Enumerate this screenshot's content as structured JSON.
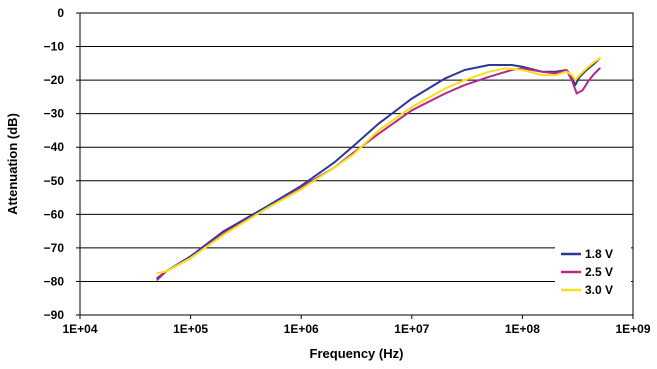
{
  "chart_data": {
    "type": "line",
    "title": "",
    "xlabel": "Frequency (Hz)",
    "ylabel": "Attenuation (dB)",
    "x_scale": "log",
    "xlim": [
      10000,
      1000000000
    ],
    "ylim": [
      -90,
      0
    ],
    "x_ticks": [
      10000,
      100000,
      1000000,
      10000000,
      100000000,
      1000000000
    ],
    "x_tick_labels": [
      "1E+04",
      "1E+05",
      "1E+06",
      "1E+07",
      "1E+08",
      "1E+09"
    ],
    "y_ticks": [
      0,
      -10,
      -20,
      -30,
      -40,
      -50,
      -60,
      -70,
      -80,
      -90
    ],
    "y_tick_labels": [
      "0",
      "−10",
      "−20",
      "−30",
      "−40",
      "−50",
      "−60",
      "−70",
      "−80",
      "−90"
    ],
    "grid": "horizontal",
    "legend_position": "bottom-right",
    "series": [
      {
        "name": "1.8 V",
        "color": "#2b3990",
        "points": [
          [
            50000,
            -79
          ],
          [
            60000,
            -77
          ],
          [
            100000,
            -72.5
          ],
          [
            200000,
            -65
          ],
          [
            500000,
            -57.5
          ],
          [
            1000000,
            -51.5
          ],
          [
            2000000,
            -44.5
          ],
          [
            3000000,
            -39.5
          ],
          [
            5000000,
            -33
          ],
          [
            10000000,
            -25.5
          ],
          [
            20000000,
            -19.5
          ],
          [
            30000000,
            -17
          ],
          [
            50000000,
            -15.5
          ],
          [
            80000000,
            -15.5
          ],
          [
            100000000,
            -16
          ],
          [
            150000000,
            -17.5
          ],
          [
            200000000,
            -17.5
          ],
          [
            250000000,
            -17
          ],
          [
            280000000,
            -19
          ],
          [
            300000000,
            -21.5
          ],
          [
            330000000,
            -19
          ],
          [
            380000000,
            -17
          ],
          [
            450000000,
            -15
          ],
          [
            500000000,
            -13.5
          ]
        ]
      },
      {
        "name": "2.5 V",
        "color": "#b5288e",
        "points": [
          [
            50000,
            -79.5
          ],
          [
            60000,
            -77
          ],
          [
            100000,
            -73
          ],
          [
            200000,
            -65.5
          ],
          [
            500000,
            -58
          ],
          [
            1000000,
            -52
          ],
          [
            2000000,
            -46
          ],
          [
            3000000,
            -41.5
          ],
          [
            5000000,
            -36
          ],
          [
            10000000,
            -29
          ],
          [
            20000000,
            -24
          ],
          [
            30000000,
            -21.5
          ],
          [
            50000000,
            -19
          ],
          [
            80000000,
            -17
          ],
          [
            100000000,
            -16.5
          ],
          [
            150000000,
            -17.5
          ],
          [
            200000000,
            -18
          ],
          [
            250000000,
            -17
          ],
          [
            280000000,
            -20
          ],
          [
            310000000,
            -24
          ],
          [
            350000000,
            -23
          ],
          [
            400000000,
            -20
          ],
          [
            450000000,
            -18
          ],
          [
            500000000,
            -16.5
          ]
        ]
      },
      {
        "name": "3.0 V",
        "color": "#f7e017",
        "points": [
          [
            50000,
            -77.5
          ],
          [
            60000,
            -77
          ],
          [
            100000,
            -73
          ],
          [
            200000,
            -66
          ],
          [
            500000,
            -58
          ],
          [
            1000000,
            -52.5
          ],
          [
            2000000,
            -46
          ],
          [
            3000000,
            -42
          ],
          [
            5000000,
            -35
          ],
          [
            10000000,
            -28
          ],
          [
            20000000,
            -22.5
          ],
          [
            30000000,
            -20
          ],
          [
            50000000,
            -17.5
          ],
          [
            70000000,
            -16.5
          ],
          [
            100000000,
            -17
          ],
          [
            150000000,
            -18.5
          ],
          [
            200000000,
            -18.5
          ],
          [
            250000000,
            -17.5
          ],
          [
            280000000,
            -18.5
          ],
          [
            300000000,
            -20
          ],
          [
            330000000,
            -18.5
          ],
          [
            380000000,
            -16.5
          ],
          [
            450000000,
            -14.5
          ],
          [
            500000000,
            -13.5
          ]
        ]
      }
    ]
  }
}
